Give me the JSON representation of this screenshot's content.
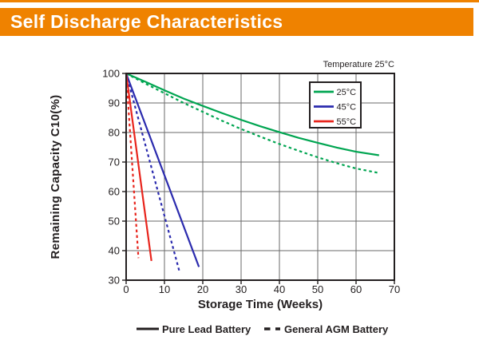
{
  "header": {
    "title": "Self Discharge Characteristics",
    "accent_color": "#EF8200"
  },
  "chart_data": {
    "type": "line",
    "title": "Self Discharge Characteristics",
    "annotation": "Temperature 25°C",
    "xlabel": "Storage Time (Weeks)",
    "ylabel": "Remaining Capacity C10(%)",
    "xlim": [
      0,
      70
    ],
    "ylim": [
      30,
      100
    ],
    "x_ticks": [
      0,
      10,
      20,
      30,
      40,
      50,
      60,
      70
    ],
    "y_ticks": [
      30,
      40,
      50,
      60,
      70,
      80,
      90,
      100
    ],
    "grid": true,
    "ink_color": "#231F20",
    "grid_color": "#6A6A6A",
    "legend": {
      "position": "top-right",
      "entries": [
        {
          "label": "25°C",
          "color": "#00A551"
        },
        {
          "label": "45°C",
          "color": "#2B2BAE"
        },
        {
          "label": "55°C",
          "color": "#E8251D"
        }
      ]
    },
    "style_legend": [
      {
        "label": "Pure Lead Battery",
        "style": "solid"
      },
      {
        "label": "General AGM Battery",
        "style": "dashed"
      }
    ],
    "series": [
      {
        "name": "25C Pure Lead Battery",
        "color": "#00A551",
        "style": "solid",
        "points": [
          [
            0,
            100
          ],
          [
            5,
            97.2
          ],
          [
            10,
            94.3
          ],
          [
            15,
            91.5
          ],
          [
            20,
            89
          ],
          [
            25,
            86.6
          ],
          [
            30,
            84.3
          ],
          [
            35,
            82.1
          ],
          [
            40,
            80.1
          ],
          [
            45,
            78.2
          ],
          [
            50,
            76.5
          ],
          [
            55,
            74.9
          ],
          [
            60,
            73.5
          ],
          [
            66,
            72.3
          ]
        ]
      },
      {
        "name": "25C General AGM Battery",
        "color": "#00A551",
        "style": "dashed",
        "points": [
          [
            0,
            100
          ],
          [
            5,
            96.6
          ],
          [
            10,
            93.3
          ],
          [
            15,
            90
          ],
          [
            20,
            87
          ],
          [
            25,
            84
          ],
          [
            30,
            81.2
          ],
          [
            35,
            78.6
          ],
          [
            40,
            76.1
          ],
          [
            45,
            73.8
          ],
          [
            50,
            71.6
          ],
          [
            55,
            69.6
          ],
          [
            60,
            67.8
          ],
          [
            66,
            66.3
          ]
        ]
      },
      {
        "name": "45C Pure Lead Battery",
        "color": "#2B2BAE",
        "style": "solid",
        "points": [
          [
            0,
            100
          ],
          [
            19,
            34.5
          ]
        ]
      },
      {
        "name": "45C General AGM Battery",
        "color": "#2B2BAE",
        "style": "dashed",
        "points": [
          [
            0,
            100
          ],
          [
            14,
            32.5
          ]
        ]
      },
      {
        "name": "55C Pure Lead Battery",
        "color": "#E8251D",
        "style": "solid",
        "points": [
          [
            0,
            100
          ],
          [
            6.6,
            36.5
          ]
        ]
      },
      {
        "name": "55C General AGM Battery",
        "color": "#E8251D",
        "style": "dashed",
        "points": [
          [
            0,
            100
          ],
          [
            3.2,
            37.5
          ]
        ]
      }
    ]
  }
}
